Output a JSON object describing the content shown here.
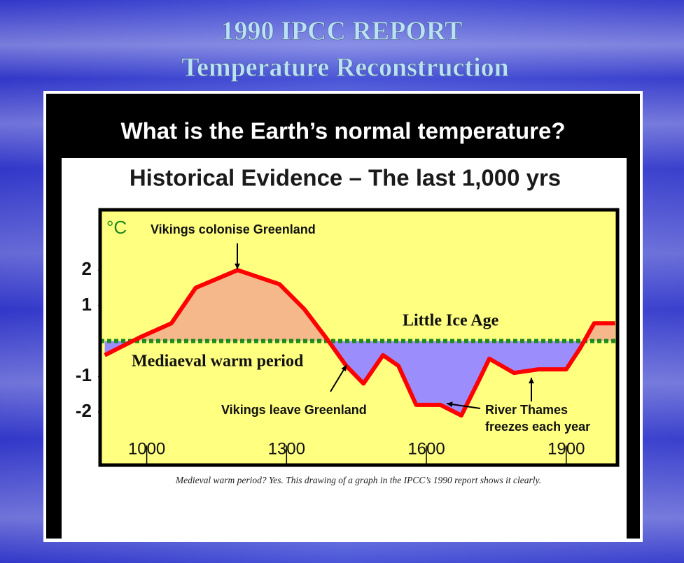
{
  "slide": {
    "title_line1": "1990 IPCC REPORT",
    "title_line2": "Temperature Reconstruction"
  },
  "chart_data": {
    "type": "line",
    "title": "What is the Earth’s normal temperature?",
    "subtitle": "Historical Evidence – The last 1,000 yrs",
    "y_unit": "°C",
    "x": [
      910,
      985,
      1053,
      1105,
      1195,
      1285,
      1338,
      1390,
      1428,
      1465,
      1507,
      1540,
      1578,
      1630,
      1675,
      1713,
      1735,
      1788,
      1840,
      1900,
      1930,
      1960,
      2005
    ],
    "values": [
      -0.4,
      0.1,
      0.5,
      1.5,
      2.0,
      1.6,
      0.9,
      0.0,
      -0.7,
      -1.2,
      -0.4,
      -0.7,
      -1.8,
      -1.8,
      -2.1,
      -1.1,
      -0.5,
      -0.9,
      -0.8,
      -0.8,
      -0.2,
      0.5,
      0.5
    ],
    "color": "#ff0000",
    "warm_color": "#f5b88a",
    "cold_color": "#9b8dfb",
    "zero_line_color": "#1f8a1f",
    "plot_background": "#ffff80",
    "xlim": [
      900,
      2010
    ],
    "ylim": [
      -3.5,
      3.7
    ],
    "xticks": [
      1000,
      1300,
      1600,
      1900
    ],
    "yticks": [
      -2,
      -1,
      1,
      2
    ],
    "annotations": [
      "Vikings colonise Greenland",
      "Little Ice Age",
      "Mediaeval warm period",
      "Vikings leave Greenland",
      "River Thames",
      "freezes each year"
    ],
    "caption": "Medieval warm period? Yes. This drawing of a graph in the IPCC’s 1990 report shows it clearly."
  }
}
